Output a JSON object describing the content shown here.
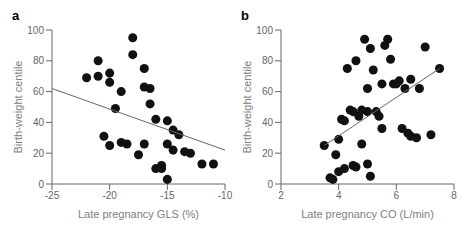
{
  "chart_data": [
    {
      "type": "scatter",
      "title": "a",
      "x_label": "Late pregnancy GLS (%)",
      "y_label": "Birth-weight centile",
      "xlim": [
        -25,
        -10
      ],
      "ylim": [
        0,
        100
      ],
      "xticks": [
        -25,
        -20,
        -15,
        -10
      ],
      "yticks": [
        0,
        20,
        40,
        60,
        80,
        100
      ],
      "series": [
        {
          "type": "scatter",
          "color": "#111111",
          "x": [
            -22,
            -21,
            -21,
            -20.5,
            -20,
            -20,
            -20,
            -19.5,
            -19,
            -19,
            -18.5,
            -18,
            -18,
            -17.5,
            -17,
            -17,
            -17,
            -16.5,
            -16.5,
            -16,
            -16,
            -15.5,
            -15.5,
            -15,
            -15,
            -15,
            -14.5,
            -14.5,
            -14,
            -13.5,
            -13,
            -12,
            -11
          ],
          "values": [
            69,
            80,
            70,
            31,
            72,
            66,
            25,
            49,
            60,
            27,
            26,
            95,
            84,
            19,
            75,
            63,
            26,
            52,
            62,
            42,
            10,
            12,
            10,
            26,
            41,
            3,
            35,
            22,
            32,
            21,
            20,
            13,
            13
          ]
        },
        {
          "type": "line",
          "color": "#666666",
          "x": [
            -25,
            -10
          ],
          "values": [
            62,
            22
          ]
        }
      ]
    },
    {
      "type": "scatter",
      "title": "b",
      "x_label": "Late pregnancy CO (L/min)",
      "y_label": "Birth-weight centile",
      "xlim": [
        2,
        8
      ],
      "ylim": [
        0,
        100
      ],
      "xticks": [
        2,
        4,
        6,
        8
      ],
      "yticks": [
        0,
        20,
        40,
        60,
        80,
        100
      ],
      "series": [
        {
          "type": "scatter",
          "color": "#111111",
          "x": [
            3.5,
            3.7,
            3.8,
            3.9,
            4.0,
            4.0,
            4.1,
            4.2,
            4.2,
            4.3,
            4.4,
            4.5,
            4.5,
            4.6,
            4.6,
            4.7,
            4.8,
            4.8,
            4.9,
            5.0,
            5.0,
            5.0,
            5.1,
            5.1,
            5.2,
            5.3,
            5.4,
            5.5,
            5.5,
            5.6,
            5.7,
            5.8,
            5.9,
            6.0,
            6.1,
            6.2,
            6.3,
            6.4,
            6.5,
            6.5,
            6.7,
            6.8,
            7.0,
            7.2,
            7.5
          ],
          "values": [
            25,
            4,
            3,
            19,
            29,
            8,
            42,
            41,
            10,
            75,
            48,
            47,
            12,
            11,
            80,
            44,
            48,
            26,
            94,
            62,
            13,
            47,
            5,
            88,
            74,
            47,
            44,
            65,
            36,
            90,
            94,
            81,
            65,
            65,
            67,
            36,
            62,
            33,
            31,
            68,
            30,
            62,
            89,
            32,
            75
          ]
        },
        {
          "type": "line",
          "color": "#666666",
          "x": [
            3.5,
            7.5
          ],
          "values": [
            25,
            75
          ]
        }
      ]
    }
  ]
}
